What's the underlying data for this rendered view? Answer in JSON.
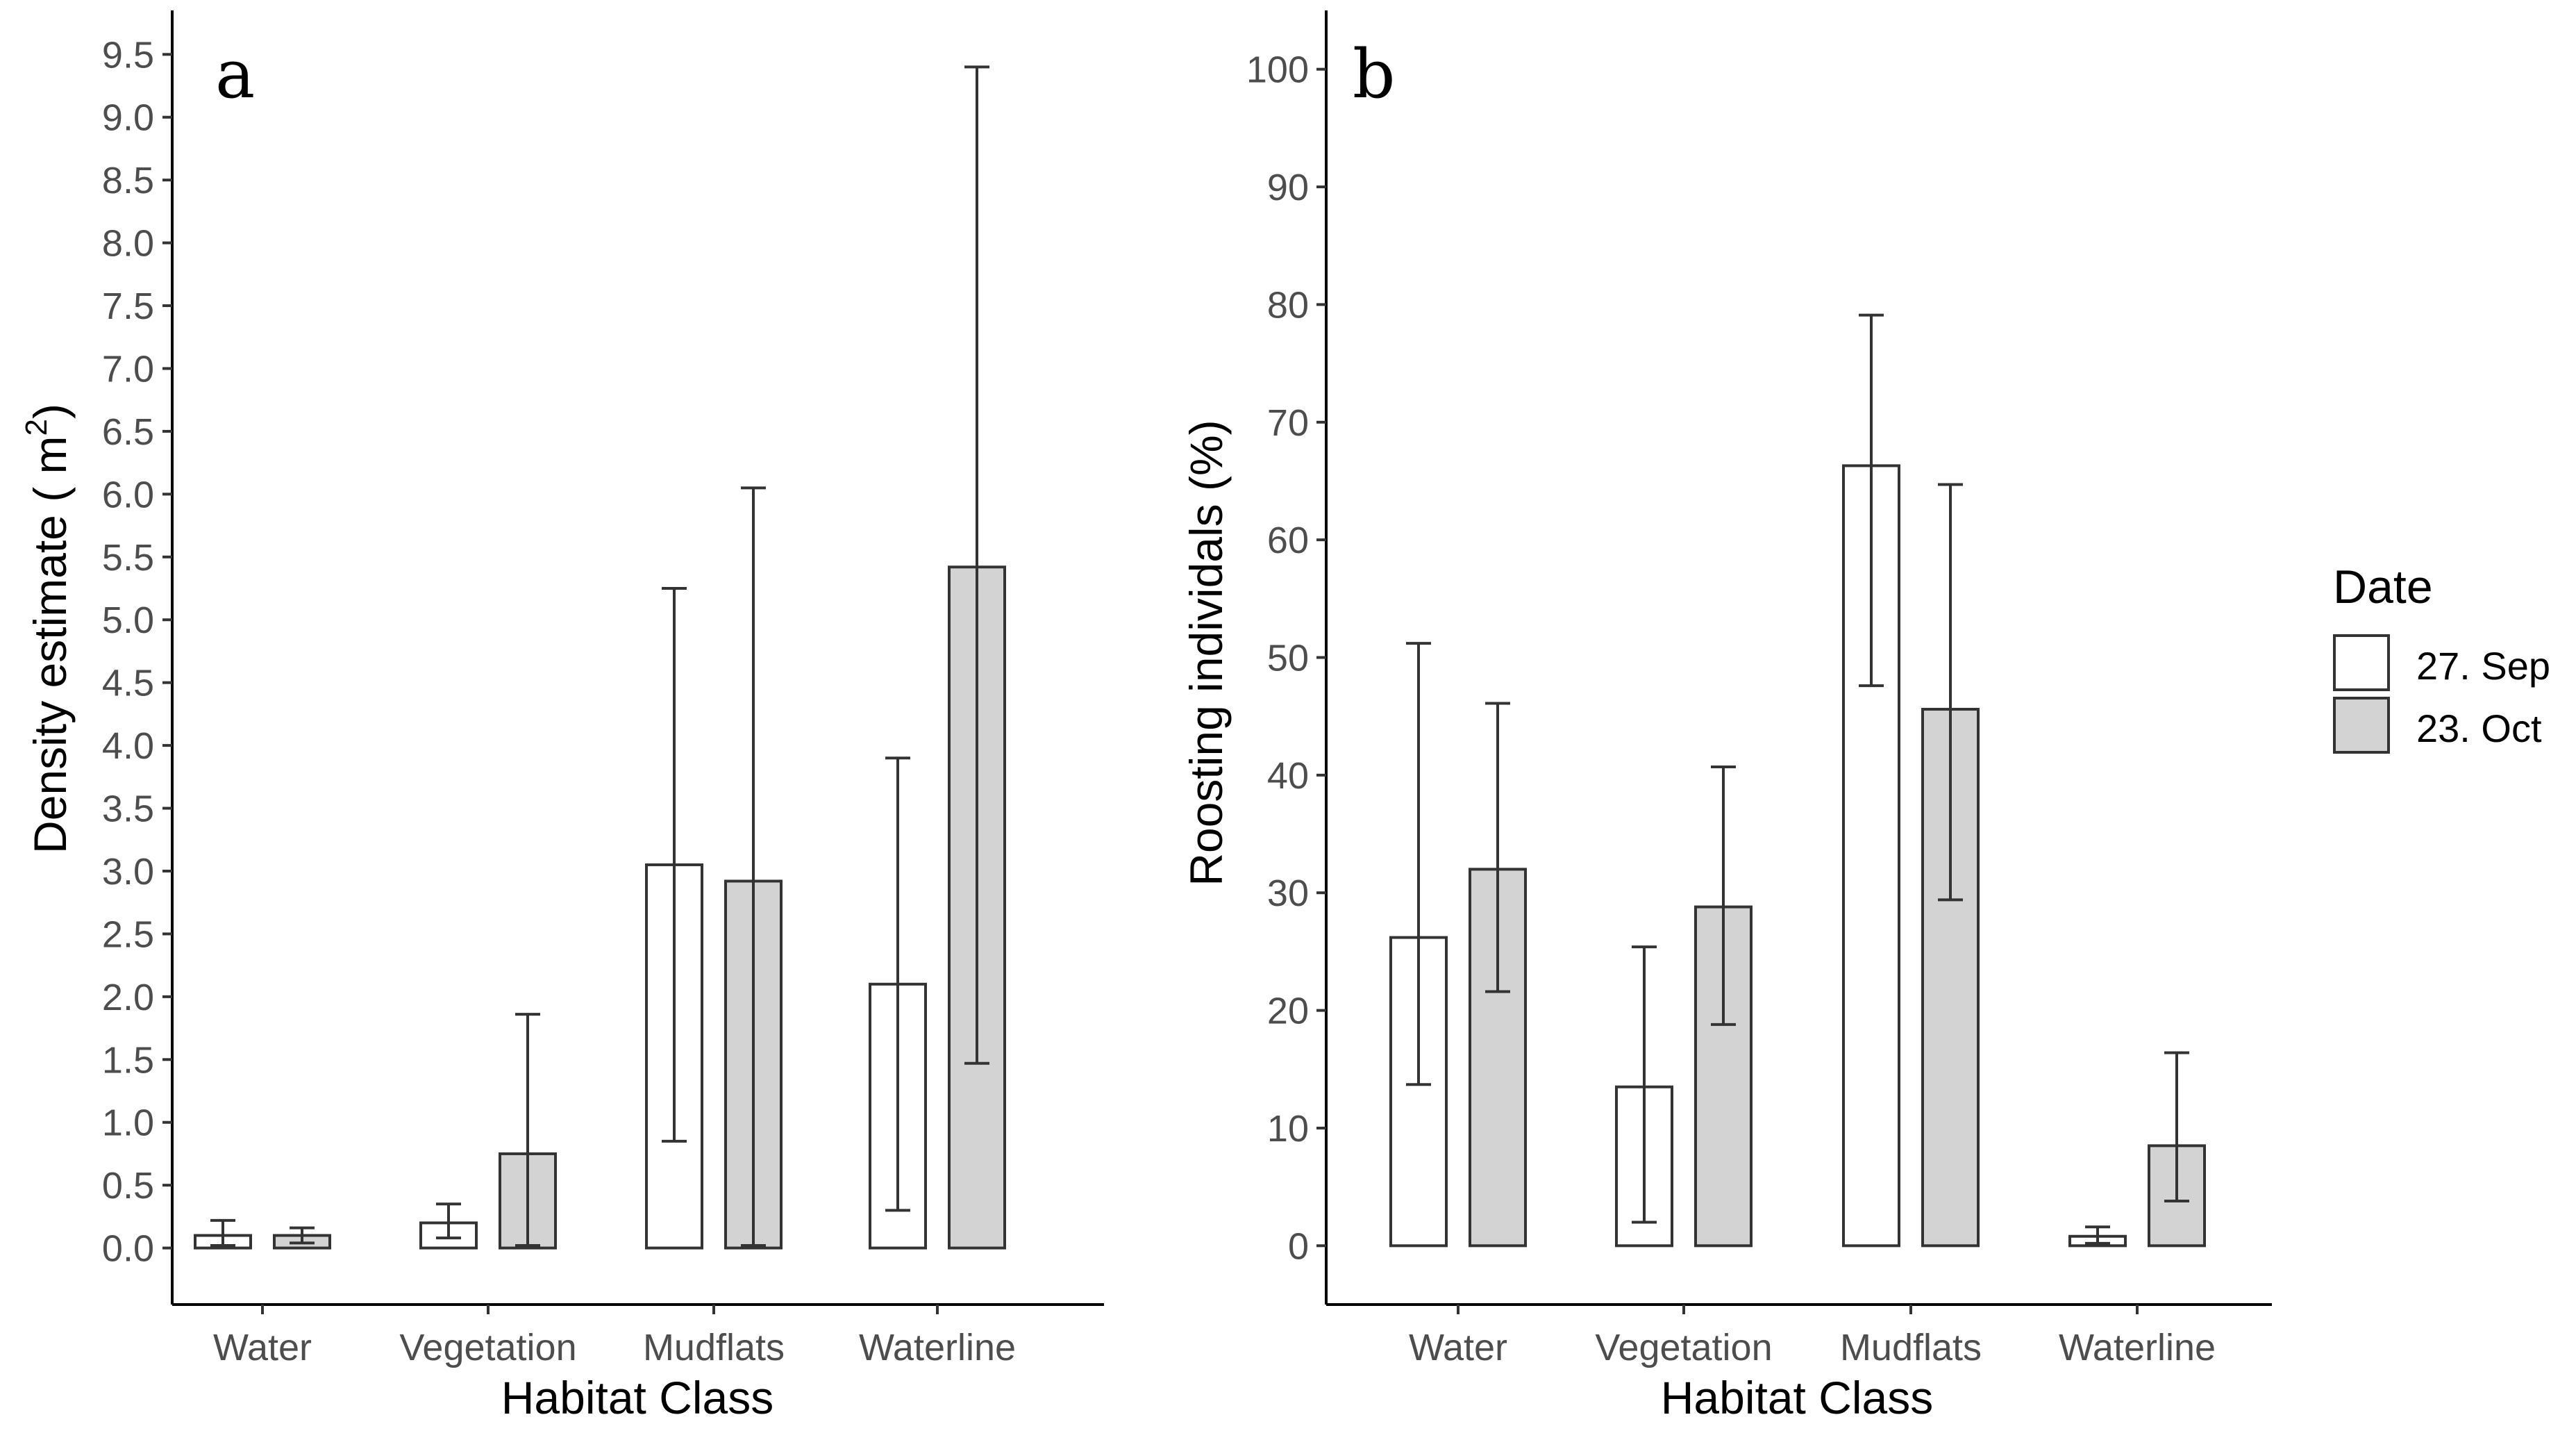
{
  "chart_data": [
    {
      "type": "bar",
      "panel_label": "a",
      "categories": [
        "Water",
        "Vegetation",
        "Mudflats",
        "Waterline"
      ],
      "series": [
        {
          "name": "27. Sep",
          "color": "#ffffff",
          "values": [
            0.1,
            0.2,
            3.05,
            2.1
          ],
          "err_low": [
            0.02,
            0.08,
            0.85,
            0.3
          ],
          "err_high": [
            0.22,
            0.35,
            5.25,
            3.9
          ]
        },
        {
          "name": "23. Oct",
          "color": "#d3d3d3",
          "values": [
            0.1,
            0.75,
            2.92,
            5.42
          ],
          "err_low": [
            0.04,
            0.02,
            0.02,
            1.47
          ],
          "err_high": [
            0.16,
            1.86,
            6.05,
            9.4
          ]
        }
      ],
      "xlabel": "Habitat Class",
      "ylabel": "Density estimate ( m",
      "ylabel_sup": "2",
      "ylabel_close": ")",
      "ylim": [
        -0.45,
        9.85
      ],
      "yticks": [
        0.0,
        0.5,
        1.0,
        1.5,
        2.0,
        2.5,
        3.0,
        3.5,
        4.0,
        4.5,
        5.0,
        5.5,
        6.0,
        6.5,
        7.0,
        7.5,
        8.0,
        8.5,
        9.0,
        9.5
      ],
      "ytick_labels": [
        "0.0",
        "0.5",
        "1.0",
        "1.5",
        "2.0",
        "2.5",
        "3.0",
        "3.5",
        "4.0",
        "4.5",
        "5.0",
        "5.5",
        "6.0",
        "6.5",
        "7.0",
        "7.5",
        "8.0",
        "8.5",
        "9.0",
        "9.5"
      ],
      "grid": false
    },
    {
      "type": "bar",
      "panel_label": "b",
      "categories": [
        "Water",
        "Vegetation",
        "Mudflats",
        "Waterline"
      ],
      "series": [
        {
          "name": "27. Sep",
          "color": "#ffffff",
          "values": [
            26.2,
            13.5,
            66.3,
            0.8
          ],
          "err_low": [
            13.7,
            2.0,
            47.6,
            0.2
          ],
          "err_high": [
            51.2,
            25.4,
            79.1,
            1.6
          ]
        },
        {
          "name": "23. Oct",
          "color": "#d3d3d3",
          "values": [
            32.0,
            28.8,
            45.6,
            8.5
          ],
          "err_low": [
            21.6,
            18.8,
            29.4,
            3.8
          ],
          "err_high": [
            46.1,
            40.7,
            64.7,
            16.4
          ]
        }
      ],
      "xlabel": "Habitat Class",
      "ylabel": "Roosting individals (%)",
      "ylim": [
        -5,
        105
      ],
      "yticks": [
        0,
        10,
        20,
        30,
        40,
        50,
        60,
        70,
        80,
        90,
        100
      ],
      "ytick_labels": [
        "0",
        "10",
        "20",
        "30",
        "40",
        "50",
        "60",
        "70",
        "80",
        "90",
        "100"
      ],
      "grid": false
    }
  ],
  "legend": {
    "title": "Date",
    "entries": [
      {
        "label": "27. Sep",
        "color": "#ffffff"
      },
      {
        "label": "23. Oct",
        "color": "#d3d3d3"
      }
    ],
    "position": "right"
  }
}
